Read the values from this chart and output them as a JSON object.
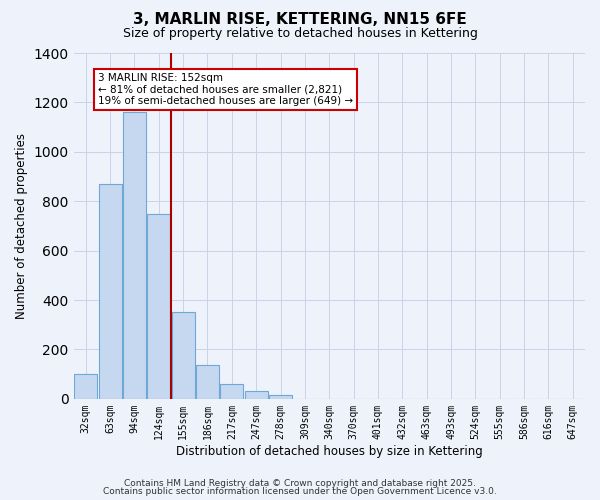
{
  "title": "3, MARLIN RISE, KETTERING, NN15 6FE",
  "subtitle": "Size of property relative to detached houses in Kettering",
  "xlabel": "Distribution of detached houses by size in Kettering",
  "ylabel": "Number of detached properties",
  "bar_labels": [
    "32sqm",
    "63sqm",
    "94sqm",
    "124sqm",
    "155sqm",
    "186sqm",
    "217sqm",
    "247sqm",
    "278sqm",
    "309sqm",
    "340sqm",
    "370sqm",
    "401sqm",
    "432sqm",
    "463sqm",
    "493sqm",
    "524sqm",
    "555sqm",
    "586sqm",
    "616sqm",
    "647sqm"
  ],
  "bar_values": [
    100,
    870,
    1160,
    750,
    350,
    135,
    62,
    30,
    15,
    0,
    0,
    0,
    0,
    0,
    0,
    0,
    0,
    0,
    0,
    0,
    0
  ],
  "bar_color": "#c5d8f0",
  "bar_edgecolor": "#6fa8d6",
  "bg_color": "#eef2fb",
  "grid_color": "#c8d4e8",
  "vline_x": 3.5,
  "vline_color": "#aa0000",
  "annotation_line1": "3 MARLIN RISE: 152sqm",
  "annotation_line2": "← 81% of detached houses are smaller (2,821)",
  "annotation_line3": "19% of semi-detached houses are larger (649) →",
  "annotation_box_color": "#ffffff",
  "annotation_box_edgecolor": "#cc0000",
  "ylim": [
    0,
    1400
  ],
  "yticks": [
    0,
    200,
    400,
    600,
    800,
    1000,
    1200,
    1400
  ],
  "footer1": "Contains HM Land Registry data © Crown copyright and database right 2025.",
  "footer2": "Contains public sector information licensed under the Open Government Licence v3.0."
}
